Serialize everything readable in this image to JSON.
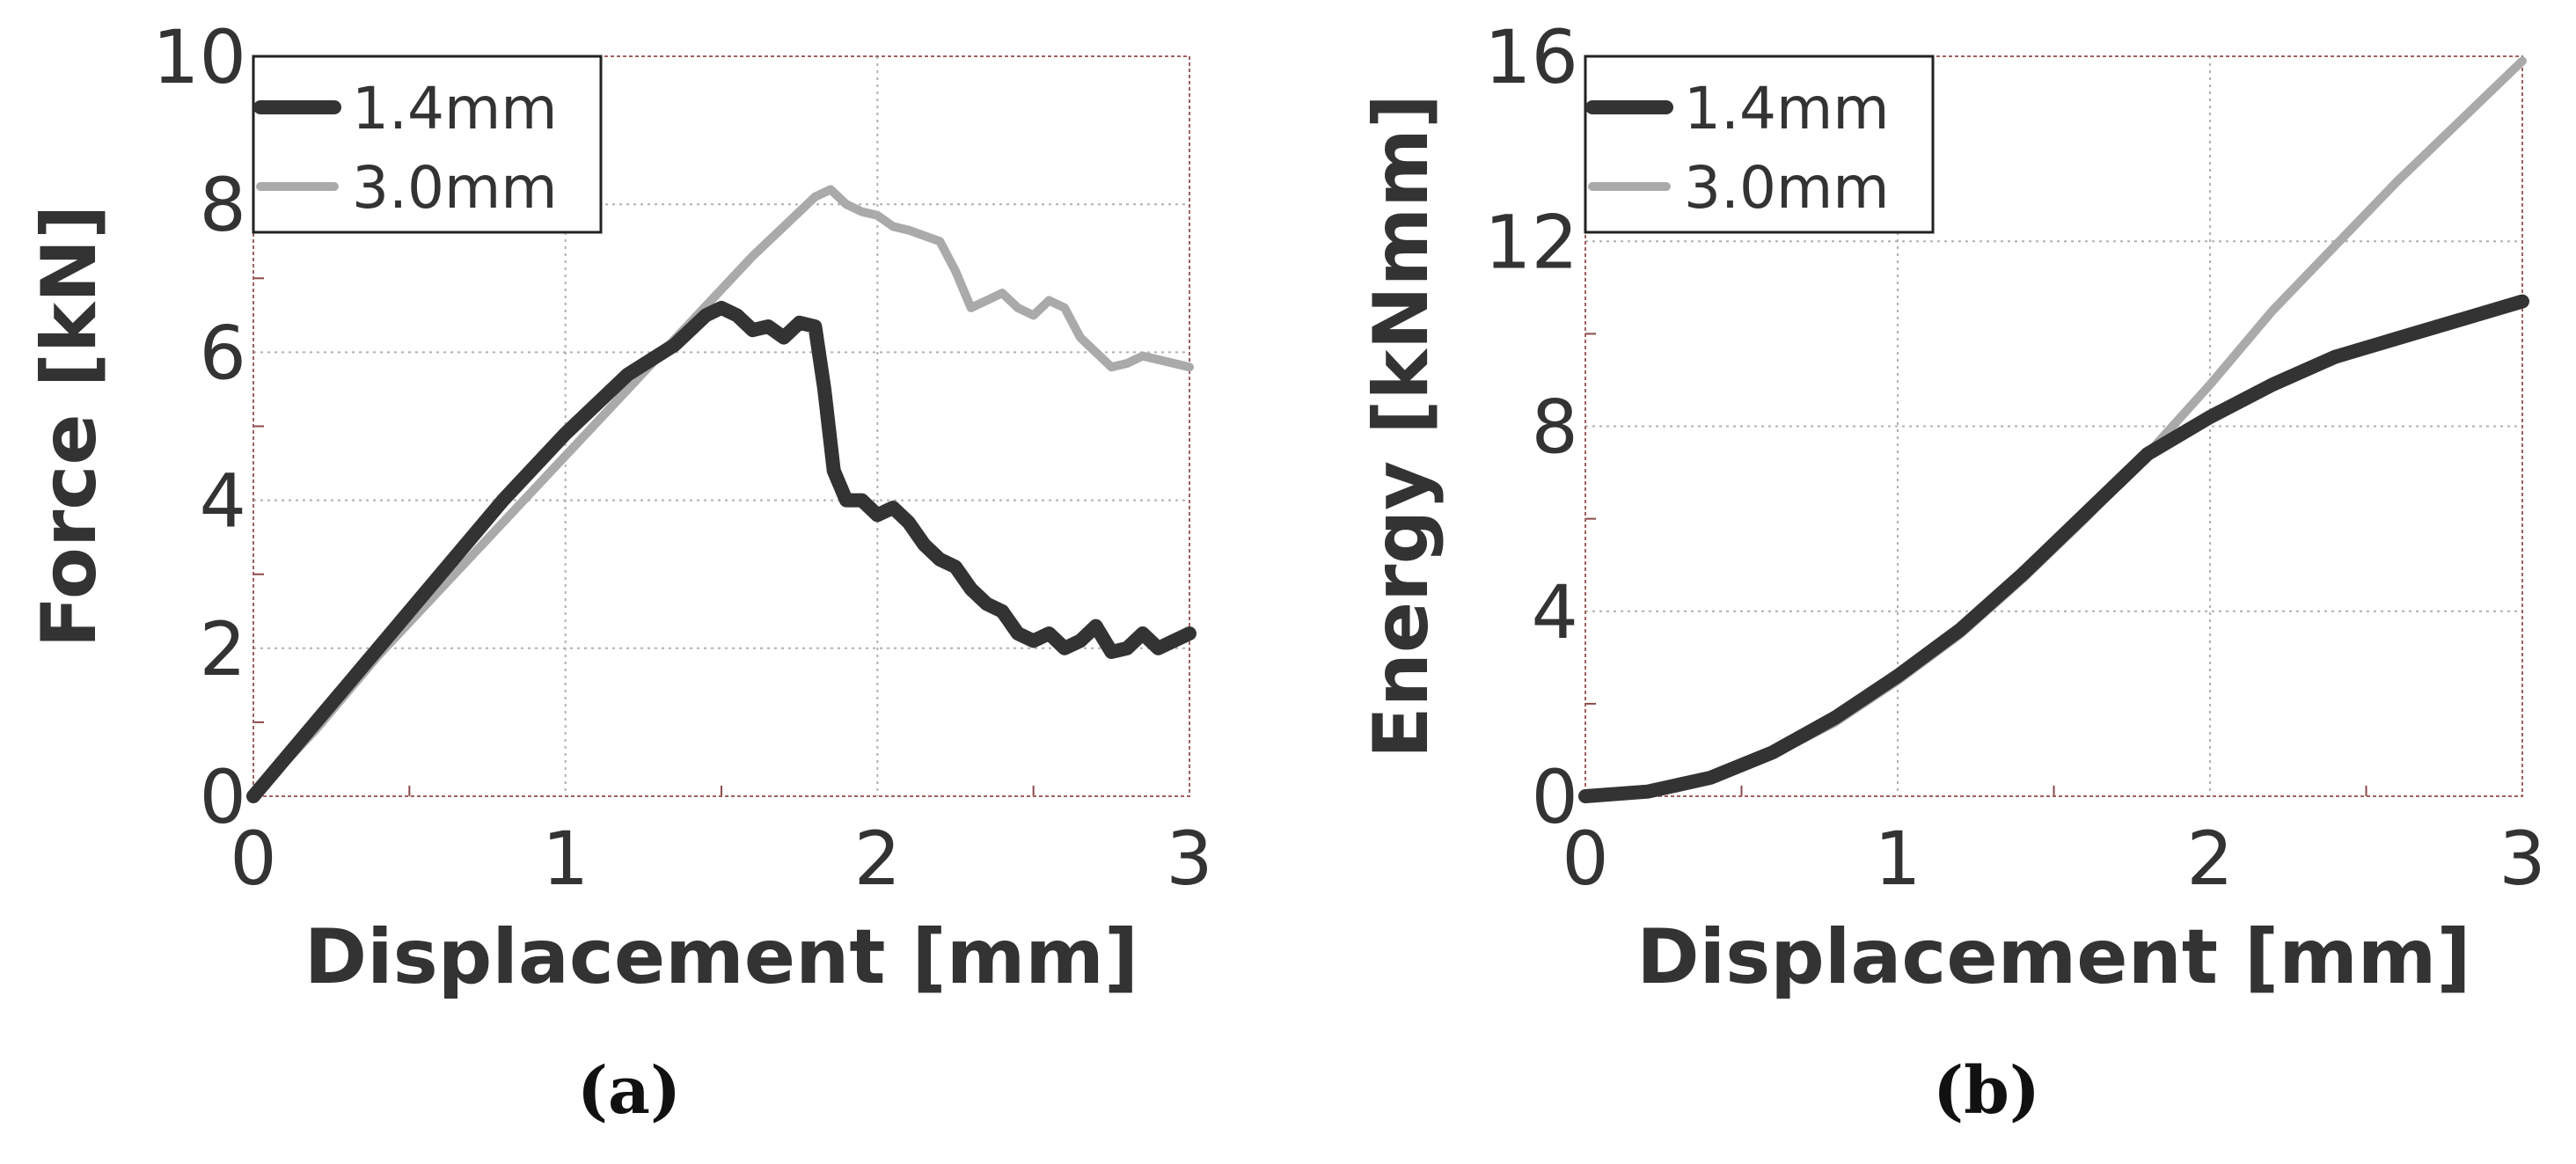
{
  "chart_data": [
    {
      "type": "line",
      "panel": "(a)",
      "xlabel": "Displacement [mm]",
      "ylabel": "Force [kN]",
      "xlim": [
        0,
        3
      ],
      "ylim": [
        0,
        10
      ],
      "xticks": [
        "0",
        "1",
        "2",
        "3"
      ],
      "yticks": [
        "0",
        "2",
        "4",
        "6",
        "8",
        "10"
      ],
      "grid": true,
      "legend_position": "top-left",
      "series": [
        {
          "name": "1.4mm",
          "color": "#333333",
          "x": [
            0,
            0.2,
            0.4,
            0.6,
            0.8,
            1.0,
            1.2,
            1.35,
            1.45,
            1.5,
            1.55,
            1.6,
            1.65,
            1.7,
            1.75,
            1.8,
            1.83,
            1.86,
            1.9,
            1.95,
            2.0,
            2.05,
            2.1,
            2.15,
            2.2,
            2.25,
            2.3,
            2.35,
            2.4,
            2.45,
            2.5,
            2.55,
            2.6,
            2.65,
            2.7,
            2.75,
            2.8,
            2.85,
            2.9,
            2.95,
            3.0
          ],
          "y": [
            0,
            1.0,
            2.0,
            3.0,
            4.0,
            4.9,
            5.7,
            6.1,
            6.5,
            6.6,
            6.5,
            6.3,
            6.35,
            6.2,
            6.4,
            6.35,
            5.5,
            4.4,
            4.0,
            4.0,
            3.8,
            3.9,
            3.7,
            3.4,
            3.2,
            3.1,
            2.8,
            2.6,
            2.5,
            2.2,
            2.1,
            2.2,
            2.0,
            2.1,
            2.3,
            1.95,
            2.0,
            2.2,
            2.0,
            2.1,
            2.2
          ]
        },
        {
          "name": "3.0mm",
          "color": "#aaaaaa",
          "x": [
            0,
            0.2,
            0.4,
            0.6,
            0.8,
            1.0,
            1.2,
            1.4,
            1.6,
            1.8,
            1.85,
            1.9,
            1.95,
            2.0,
            2.05,
            2.1,
            2.2,
            2.25,
            2.3,
            2.35,
            2.4,
            2.45,
            2.5,
            2.55,
            2.6,
            2.65,
            2.7,
            2.75,
            2.8,
            2.85,
            2.9,
            3.0
          ],
          "y": [
            0,
            0.9,
            1.9,
            2.8,
            3.7,
            4.6,
            5.5,
            6.4,
            7.3,
            8.1,
            8.2,
            8.0,
            7.9,
            7.85,
            7.7,
            7.65,
            7.5,
            7.1,
            6.6,
            6.7,
            6.8,
            6.6,
            6.5,
            6.7,
            6.6,
            6.2,
            6.0,
            5.8,
            5.85,
            5.95,
            5.9,
            5.8
          ]
        }
      ]
    },
    {
      "type": "line",
      "panel": "(b)",
      "xlabel": "Displacement [mm]",
      "ylabel": "Energy [kNmm]",
      "xlim": [
        0,
        3
      ],
      "ylim": [
        0,
        16
      ],
      "xticks": [
        "0",
        "1",
        "2",
        "3"
      ],
      "yticks": [
        "0",
        "4",
        "8",
        "12",
        "16"
      ],
      "grid": true,
      "legend_position": "top-left",
      "series": [
        {
          "name": "1.4mm",
          "color": "#333333",
          "x": [
            0,
            0.2,
            0.4,
            0.6,
            0.8,
            1.0,
            1.2,
            1.4,
            1.6,
            1.8,
            2.0,
            2.2,
            2.4,
            2.6,
            2.8,
            3.0
          ],
          "y": [
            0,
            0.1,
            0.4,
            0.95,
            1.7,
            2.6,
            3.6,
            4.8,
            6.1,
            7.4,
            8.2,
            8.9,
            9.5,
            9.9,
            10.3,
            10.7
          ]
        },
        {
          "name": "3.0mm",
          "color": "#aaaaaa",
          "x": [
            0,
            0.2,
            0.4,
            0.6,
            0.8,
            1.0,
            1.2,
            1.4,
            1.6,
            1.8,
            2.0,
            2.2,
            2.4,
            2.6,
            2.8,
            3.0
          ],
          "y": [
            0,
            0.1,
            0.4,
            0.9,
            1.6,
            2.5,
            3.5,
            4.7,
            6.0,
            7.4,
            8.9,
            10.5,
            11.9,
            13.3,
            14.6,
            15.9
          ]
        }
      ]
    }
  ],
  "captions": [
    "(a)",
    "(b)"
  ]
}
